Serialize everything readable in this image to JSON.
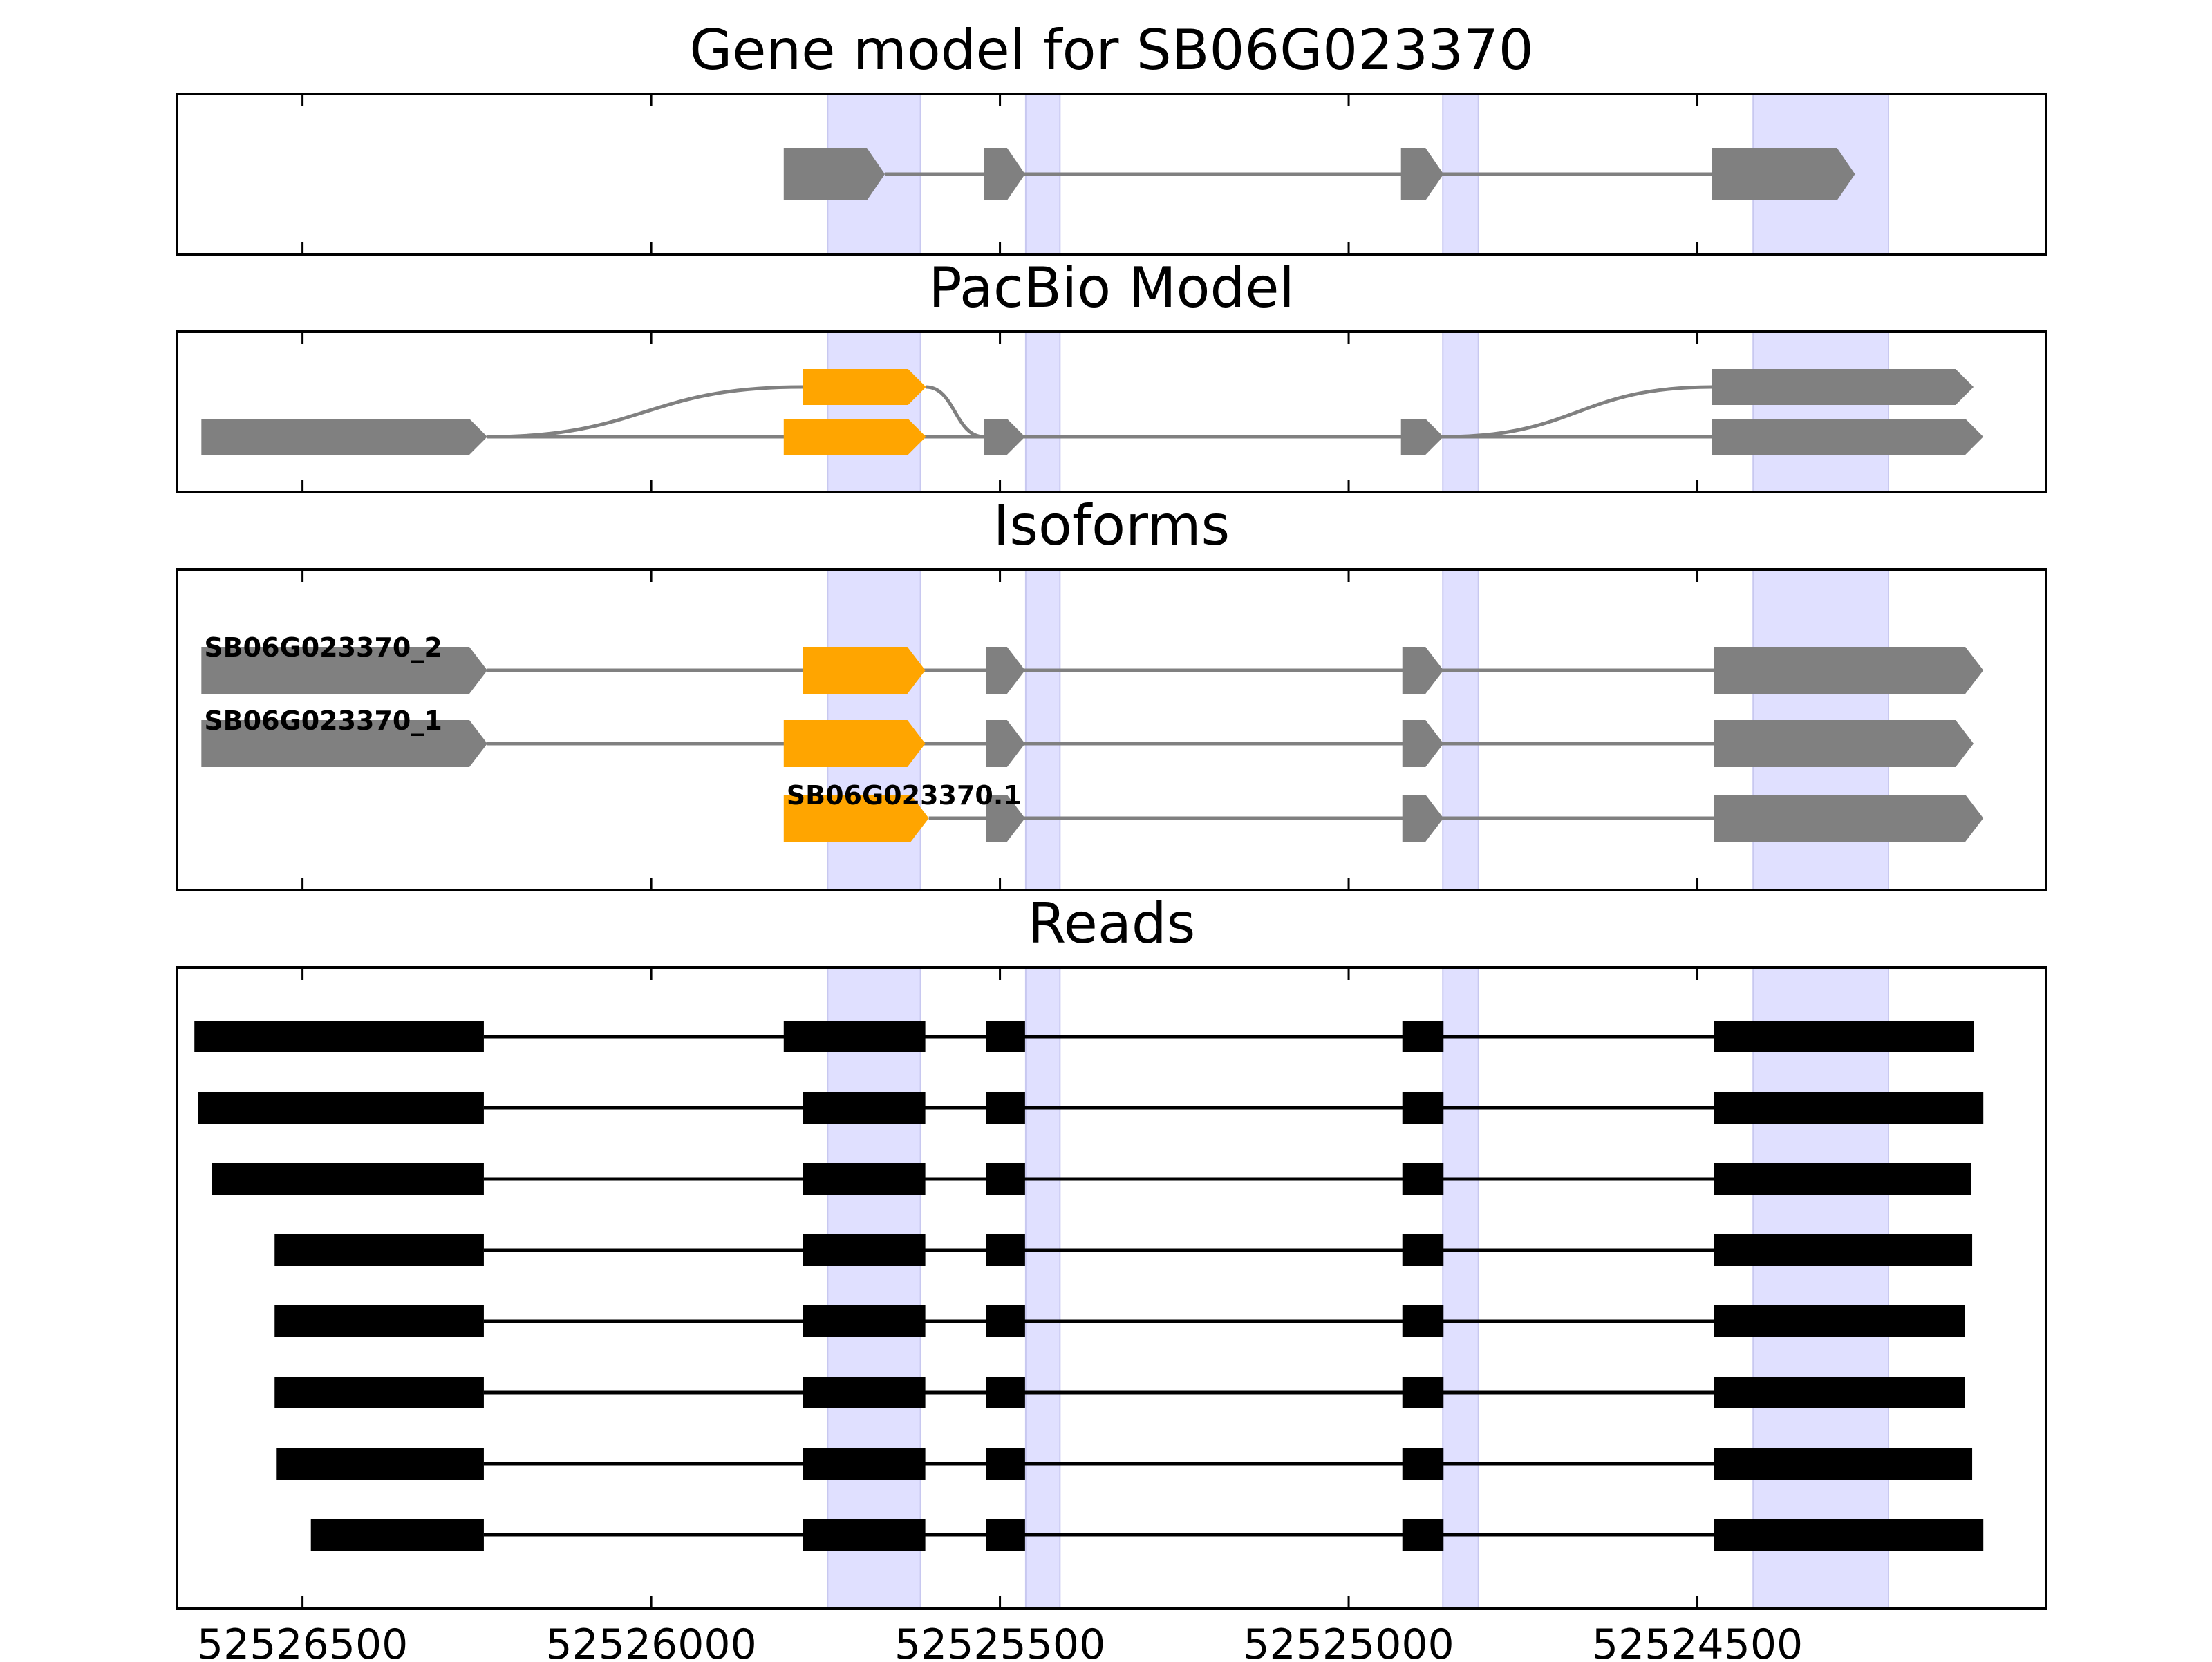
{
  "chart_data": {
    "type": "gene_track",
    "x_axis": {
      "reversed": true,
      "range": [
        52526680,
        52524000
      ],
      "ticks": [
        {
          "value": 52526500,
          "label": "52526500"
        },
        {
          "value": 52526000,
          "label": "52526000"
        },
        {
          "value": 52525500,
          "label": "52525500"
        },
        {
          "value": 52525000,
          "label": "52525000"
        },
        {
          "value": 52524500,
          "label": "52524500"
        }
      ]
    },
    "highlight_regions": [
      [
        52525747,
        52525614
      ],
      [
        52525463,
        52525414
      ],
      [
        52524865,
        52524814
      ],
      [
        52524420,
        52524226
      ]
    ],
    "colors": {
      "highlight": "#e0e0ff",
      "exon_gray": "#808080",
      "exon_orange": "#ffa500",
      "intron_line": "#808080",
      "read": "#000000"
    },
    "panels": [
      {
        "title": "Gene model for SB06G023370",
        "kind": "gene_model",
        "transcripts": [
          {
            "exons": [
              [
                52525810,
                52525665
              ],
              [
                52525523,
                52525464
              ],
              [
                52524925,
                52524864
              ],
              [
                52524479,
                52524274
              ]
            ],
            "color": "#808080"
          }
        ]
      },
      {
        "title": "PacBio Model",
        "kind": "splice_graph",
        "rows": [
          {
            "exons": [
              {
                "range": [
                  52525783,
                  52525606
                ],
                "color": "#ffa500"
              },
              {
                "range": [
                  52524479,
                  52524104
                ],
                "color": "#808080"
              }
            ]
          },
          {
            "exons": [
              {
                "range": [
                  52526645,
                  52526235
                ],
                "color": "#808080"
              },
              {
                "range": [
                  52525810,
                  52525606
                ],
                "color": "#ffa500"
              },
              {
                "range": [
                  52525523,
                  52525464
                ],
                "color": "#808080"
              },
              {
                "range": [
                  52524925,
                  52524864
                ],
                "color": "#808080"
              },
              {
                "range": [
                  52524479,
                  52524090
                ],
                "color": "#808080"
              }
            ]
          }
        ],
        "links": [
          {
            "from_row": 1,
            "from": 52526235,
            "to_row": 0,
            "to": 52525783
          },
          {
            "from_row": 0,
            "from": 52525606,
            "to_row": 1,
            "to": 52525523
          },
          {
            "from_row": 1,
            "from": 52524864,
            "to_row": 0,
            "to": 52524479
          }
        ]
      },
      {
        "title": "Isoforms",
        "kind": "isoforms",
        "transcripts": [
          {
            "label": "SB06G023370_2",
            "exons": [
              {
                "range": [
                  52526645,
                  52526235
                ],
                "color": "#808080"
              },
              {
                "range": [
                  52525783,
                  52525607
                ],
                "color": "#ffa500"
              },
              {
                "range": [
                  52525520,
                  52525464
                ],
                "color": "#808080"
              },
              {
                "range": [
                  52524923,
                  52524864
                ],
                "color": "#808080"
              },
              {
                "range": [
                  52524476,
                  52524090
                ],
                "color": "#808080"
              }
            ]
          },
          {
            "label": "SB06G023370_1",
            "exons": [
              {
                "range": [
                  52526645,
                  52526235
                ],
                "color": "#808080"
              },
              {
                "range": [
                  52525810,
                  52525607
                ],
                "color": "#ffa500"
              },
              {
                "range": [
                  52525520,
                  52525464
                ],
                "color": "#808080"
              },
              {
                "range": [
                  52524923,
                  52524864
                ],
                "color": "#808080"
              },
              {
                "range": [
                  52524476,
                  52524104
                ],
                "color": "#808080"
              }
            ]
          },
          {
            "label": "SB06G023370.1",
            "exons": [
              {
                "range": [
                  52525810,
                  52525602
                ],
                "color": "#ffa500"
              },
              {
                "range": [
                  52525520,
                  52525464
                ],
                "color": "#808080"
              },
              {
                "range": [
                  52524923,
                  52524864
                ],
                "color": "#808080"
              },
              {
                "range": [
                  52524476,
                  52524090
                ],
                "color": "#808080"
              }
            ]
          }
        ]
      },
      {
        "title": "Reads",
        "kind": "reads",
        "reads": [
          [
            [
              52526655,
              52526240
            ],
            [
              52525810,
              52525607
            ],
            [
              52525520,
              52525464
            ],
            [
              52524923,
              52524864
            ],
            [
              52524476,
              52524104
            ]
          ],
          [
            [
              52526650,
              52526240
            ],
            [
              52525783,
              52525607
            ],
            [
              52525520,
              52525464
            ],
            [
              52524923,
              52524864
            ],
            [
              52524476,
              52524090
            ]
          ],
          [
            [
              52526630,
              52526240
            ],
            [
              52525783,
              52525607
            ],
            [
              52525520,
              52525464
            ],
            [
              52524923,
              52524864
            ],
            [
              52524476,
              52524108
            ]
          ],
          [
            [
              52526540,
              52526240
            ],
            [
              52525783,
              52525607
            ],
            [
              52525520,
              52525464
            ],
            [
              52524923,
              52524864
            ],
            [
              52524476,
              52524106
            ]
          ],
          [
            [
              52526540,
              52526240
            ],
            [
              52525783,
              52525607
            ],
            [
              52525520,
              52525464
            ],
            [
              52524923,
              52524864
            ],
            [
              52524476,
              52524116
            ]
          ],
          [
            [
              52526540,
              52526240
            ],
            [
              52525783,
              52525607
            ],
            [
              52525520,
              52525464
            ],
            [
              52524923,
              52524864
            ],
            [
              52524476,
              52524116
            ]
          ],
          [
            [
              52526537,
              52526240
            ],
            [
              52525783,
              52525607
            ],
            [
              52525520,
              52525464
            ],
            [
              52524923,
              52524864
            ],
            [
              52524476,
              52524106
            ]
          ],
          [
            [
              52526488,
              52526240
            ],
            [
              52525783,
              52525607
            ],
            [
              52525520,
              52525464
            ],
            [
              52524923,
              52524864
            ],
            [
              52524476,
              52524090
            ]
          ]
        ]
      }
    ]
  }
}
